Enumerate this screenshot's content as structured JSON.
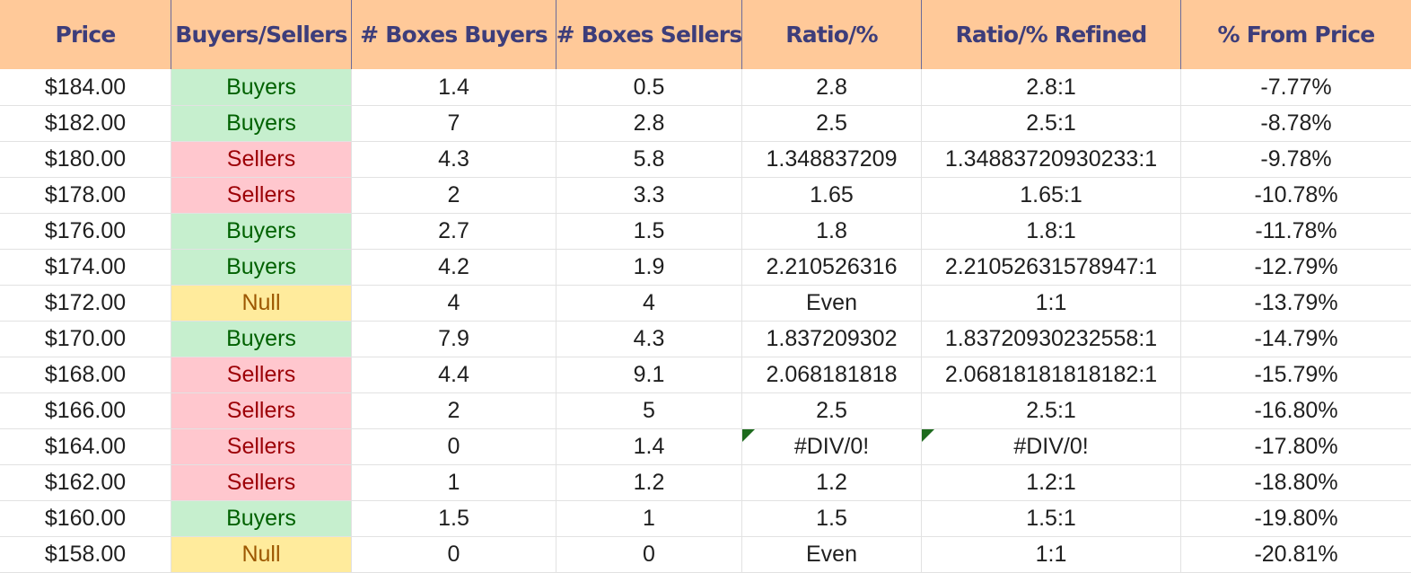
{
  "columns": [
    "Price",
    "Buyers/Sellers",
    "# Boxes Buyers",
    "# Boxes Sellers",
    "Ratio/%",
    "Ratio/% Refined",
    "% From Price"
  ],
  "colors": {
    "header_bg": "#ffc999",
    "header_text": "#3d3d7a",
    "buyers_bg": "#c6efce",
    "buyers_text": "#006100",
    "sellers_bg": "#ffc7ce",
    "sellers_text": "#9c0006",
    "null_bg": "#ffeb9c",
    "null_text": "#9c5700",
    "error_flag": "#1e6b1e"
  },
  "rows": [
    {
      "price": "$184.00",
      "side": "Buyers",
      "boxes_buyers": "1.4",
      "boxes_sellers": "0.5",
      "ratio": "2.8",
      "ratio_refined": "2.8:1",
      "from_price": "-7.77%"
    },
    {
      "price": "$182.00",
      "side": "Buyers",
      "boxes_buyers": "7",
      "boxes_sellers": "2.8",
      "ratio": "2.5",
      "ratio_refined": "2.5:1",
      "from_price": "-8.78%"
    },
    {
      "price": "$180.00",
      "side": "Sellers",
      "boxes_buyers": "4.3",
      "boxes_sellers": "5.8",
      "ratio": "1.348837209",
      "ratio_refined": "1.34883720930233:1",
      "from_price": "-9.78%"
    },
    {
      "price": "$178.00",
      "side": "Sellers",
      "boxes_buyers": "2",
      "boxes_sellers": "3.3",
      "ratio": "1.65",
      "ratio_refined": "1.65:1",
      "from_price": "-10.78%"
    },
    {
      "price": "$176.00",
      "side": "Buyers",
      "boxes_buyers": "2.7",
      "boxes_sellers": "1.5",
      "ratio": "1.8",
      "ratio_refined": "1.8:1",
      "from_price": "-11.78%"
    },
    {
      "price": "$174.00",
      "side": "Buyers",
      "boxes_buyers": "4.2",
      "boxes_sellers": "1.9",
      "ratio": "2.210526316",
      "ratio_refined": "2.21052631578947:1",
      "from_price": "-12.79%"
    },
    {
      "price": "$172.00",
      "side": "Null",
      "boxes_buyers": "4",
      "boxes_sellers": "4",
      "ratio": "Even",
      "ratio_refined": "1:1",
      "from_price": "-13.79%"
    },
    {
      "price": "$170.00",
      "side": "Buyers",
      "boxes_buyers": "7.9",
      "boxes_sellers": "4.3",
      "ratio": "1.837209302",
      "ratio_refined": "1.83720930232558:1",
      "from_price": "-14.79%"
    },
    {
      "price": "$168.00",
      "side": "Sellers",
      "boxes_buyers": "4.4",
      "boxes_sellers": "9.1",
      "ratio": "2.068181818",
      "ratio_refined": "2.06818181818182:1",
      "from_price": "-15.79%"
    },
    {
      "price": "$166.00",
      "side": "Sellers",
      "boxes_buyers": "2",
      "boxes_sellers": "5",
      "ratio": "2.5",
      "ratio_refined": "2.5:1",
      "from_price": "-16.80%"
    },
    {
      "price": "$164.00",
      "side": "Sellers",
      "boxes_buyers": "0",
      "boxes_sellers": "1.4",
      "ratio": "#DIV/0!",
      "ratio_refined": "#DIV/0!",
      "from_price": "-17.80%"
    },
    {
      "price": "$162.00",
      "side": "Sellers",
      "boxes_buyers": "1",
      "boxes_sellers": "1.2",
      "ratio": "1.2",
      "ratio_refined": "1.2:1",
      "from_price": "-18.80%"
    },
    {
      "price": "$160.00",
      "side": "Buyers",
      "boxes_buyers": "1.5",
      "boxes_sellers": "1",
      "ratio": "1.5",
      "ratio_refined": "1.5:1",
      "from_price": "-19.80%"
    },
    {
      "price": "$158.00",
      "side": "Null",
      "boxes_buyers": "0",
      "boxes_sellers": "0",
      "ratio": "Even",
      "ratio_refined": "1:1",
      "from_price": "-20.81%"
    }
  ]
}
